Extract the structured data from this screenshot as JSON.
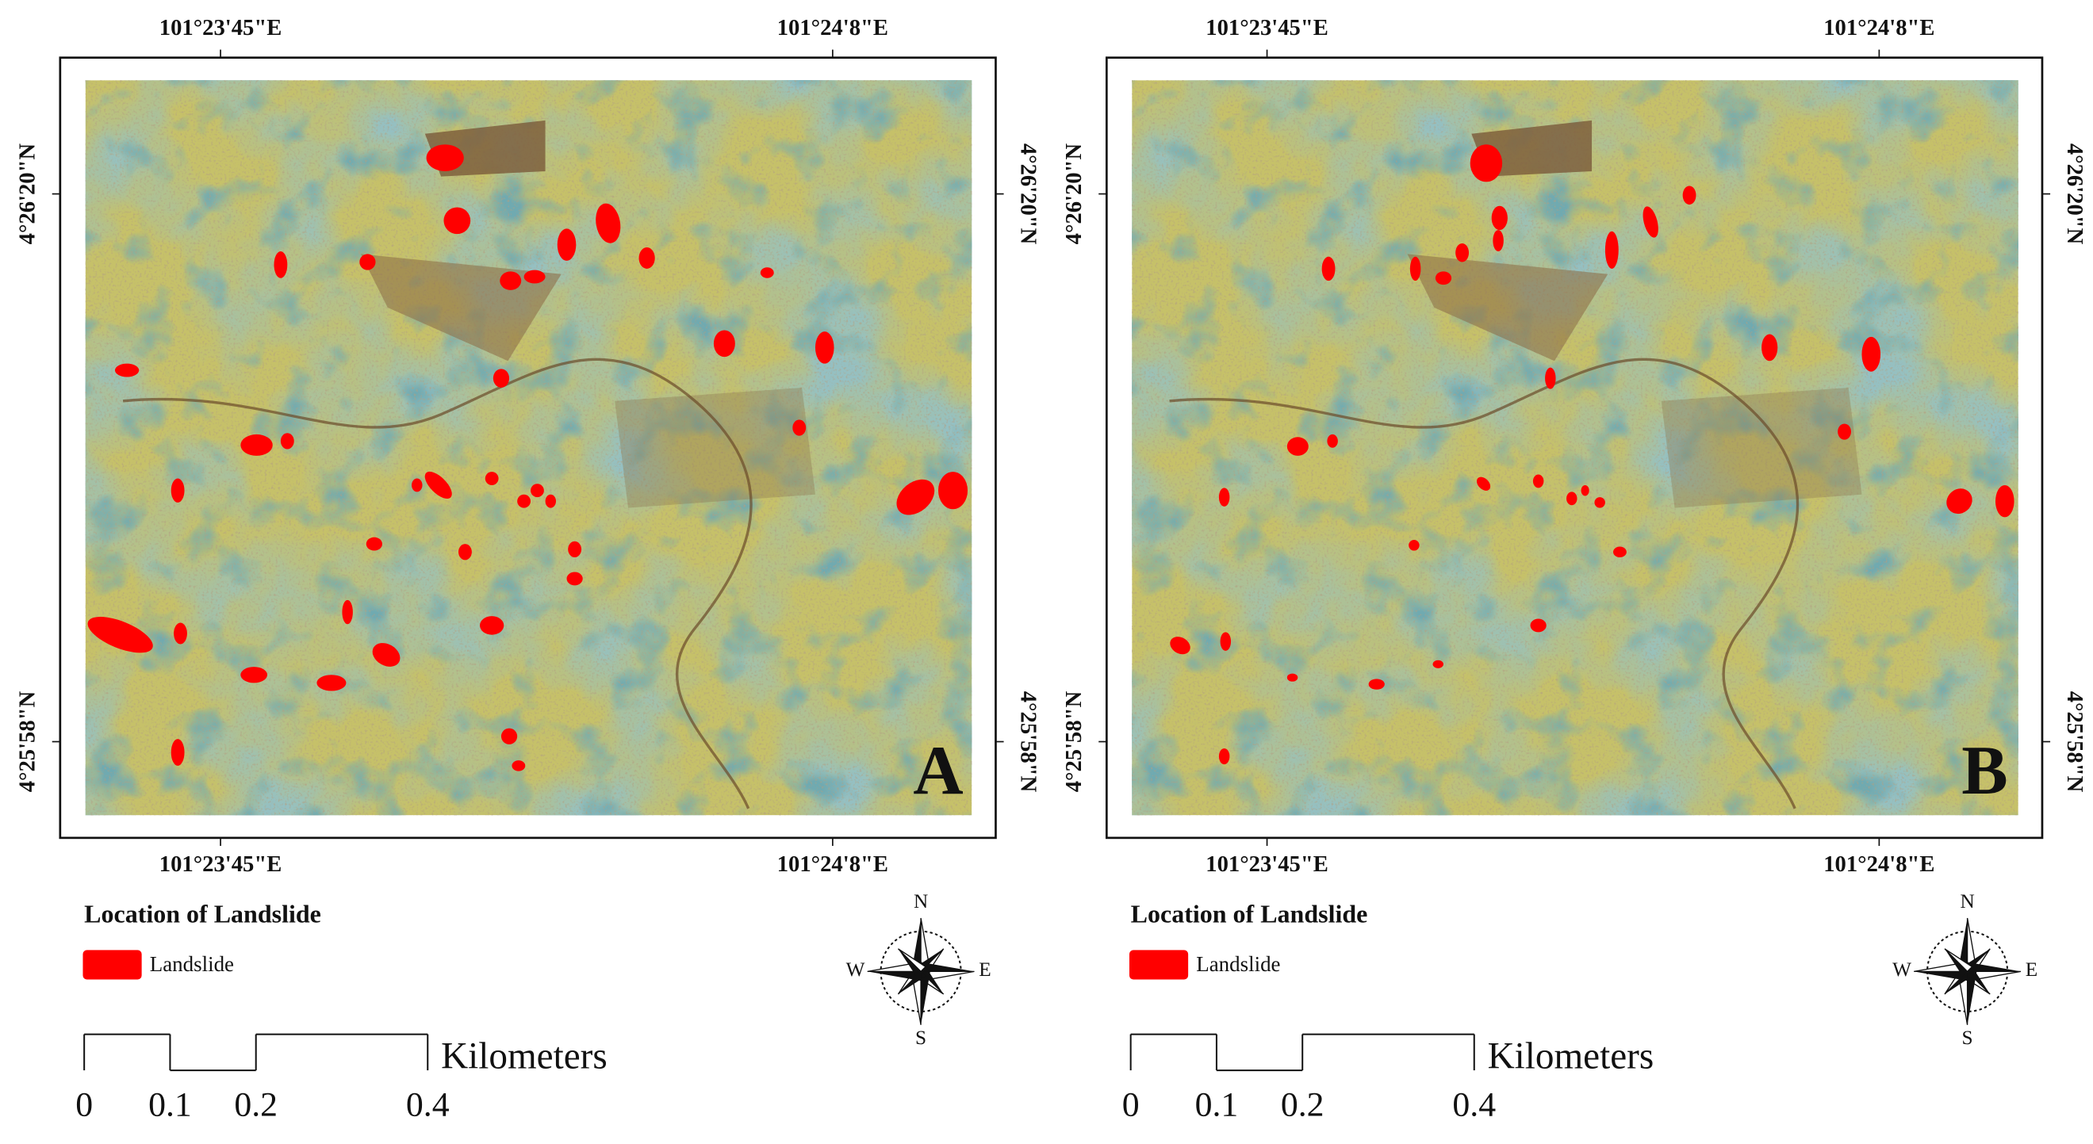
{
  "panels": [
    {
      "label": "A",
      "top_labels": [
        "101°23'45\"E",
        "101°24'8\"E"
      ],
      "bottom_labels": [
        "101°23'45\"E",
        "101°24'8\"E"
      ],
      "left_labels": [
        "4°26'20\"N",
        "4°25'58\"N"
      ],
      "right_labels": [
        "4°26'20\"N",
        "4°25'58\"N"
      ],
      "legend": {
        "title": "Location of Landslide",
        "items": [
          "Landslide"
        ]
      },
      "scale": {
        "unit": "Kilometers",
        "ticks": [
          0,
          0.1,
          0.2,
          0.4
        ]
      },
      "compass": {
        "n": "N",
        "s": "S",
        "e": "E",
        "w": "W"
      }
    },
    {
      "label": "B",
      "top_labels": [
        "101°23'45\"E",
        "101°24'8\"E"
      ],
      "bottom_labels": [
        "101°23'45\"E",
        "101°24'8\"E"
      ],
      "left_labels": [
        "4°26'20\"N",
        "4°25'58\"N"
      ],
      "right_labels": [
        "4°26'20\"N",
        "4°25'58\"N"
      ],
      "legend": {
        "title": "Location of Landslide",
        "items": [
          "Landslide"
        ]
      },
      "scale": {
        "unit": "Kilometers",
        "ticks": [
          0,
          0.1,
          0.2,
          0.4
        ]
      },
      "compass": {
        "n": "N",
        "s": "S",
        "e": "E",
        "w": "W"
      }
    }
  ]
}
